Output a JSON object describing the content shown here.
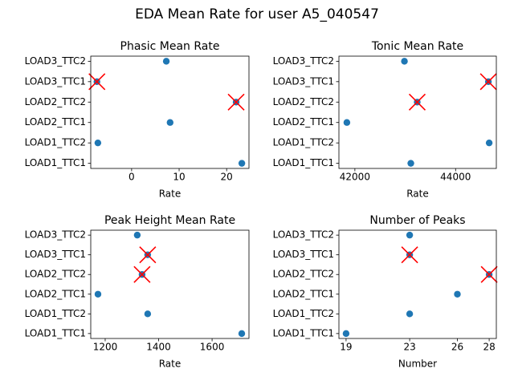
{
  "title": "EDA Mean Rate for user A5_040547",
  "chart_data": [
    {
      "type": "scatter",
      "title": "Phasic Mean Rate",
      "x_label": "Rate",
      "categories": [
        "LOAD1_TTC1",
        "LOAD1_TTC2",
        "LOAD2_TTC1",
        "LOAD2_TTC2",
        "LOAD3_TTC1",
        "LOAD3_TTC2"
      ],
      "series": [
        {
          "color": "#1f77b4",
          "marker": "o",
          "values": [
            23.2,
            -7.1,
            8.1,
            22.0,
            -7.3,
            7.3
          ]
        },
        {
          "color": "#ff0000",
          "marker": "x",
          "values": [
            null,
            null,
            null,
            22.0,
            -7.3,
            null
          ]
        }
      ],
      "xlim": [
        -8.6,
        24.7
      ],
      "xticks": [
        0,
        10,
        20
      ]
    },
    {
      "type": "scatter",
      "title": "Tonic Mean Rate",
      "x_label": "Rate",
      "categories": [
        "LOAD1_TTC1",
        "LOAD1_TTC2",
        "LOAD2_TTC1",
        "LOAD2_TTC2",
        "LOAD3_TTC1",
        "LOAD3_TTC2"
      ],
      "series": [
        {
          "color": "#1f77b4",
          "marker": "o",
          "values": [
            43111,
            44667,
            41841,
            43238,
            44651,
            42984
          ]
        },
        {
          "color": "#ff0000",
          "marker": "x",
          "values": [
            null,
            null,
            null,
            43238,
            44651,
            null
          ]
        }
      ],
      "xlim": [
        41683,
        44809
      ],
      "xticks": [
        42000,
        44000
      ]
    },
    {
      "type": "scatter",
      "title": "Peak Height Mean Rate",
      "x_label": "Rate",
      "categories": [
        "LOAD1_TTC1",
        "LOAD1_TTC2",
        "LOAD2_TTC1",
        "LOAD2_TTC2",
        "LOAD3_TTC1",
        "LOAD3_TTC2"
      ],
      "series": [
        {
          "color": "#1f77b4",
          "marker": "o",
          "values": [
            1711,
            1359,
            1173,
            1338,
            1359,
            1320
          ]
        },
        {
          "color": "#ff0000",
          "marker": "x",
          "values": [
            null,
            null,
            null,
            1338,
            1359,
            null
          ]
        }
      ],
      "xlim": [
        1146,
        1738
      ],
      "xticks": [
        1200,
        1400,
        1600
      ]
    },
    {
      "type": "scatter",
      "title": "Number of Peaks",
      "x_label": "Number",
      "categories": [
        "LOAD1_TTC1",
        "LOAD1_TTC2",
        "LOAD2_TTC1",
        "LOAD2_TTC2",
        "LOAD3_TTC1",
        "LOAD3_TTC2"
      ],
      "series": [
        {
          "color": "#1f77b4",
          "marker": "o",
          "values": [
            19,
            23,
            26,
            28,
            23,
            23
          ]
        },
        {
          "color": "#ff0000",
          "marker": "x",
          "values": [
            null,
            null,
            null,
            28,
            23,
            null
          ]
        }
      ],
      "xlim": [
        18.55,
        28.45
      ],
      "xticks": [
        19,
        23,
        26,
        28
      ]
    }
  ]
}
